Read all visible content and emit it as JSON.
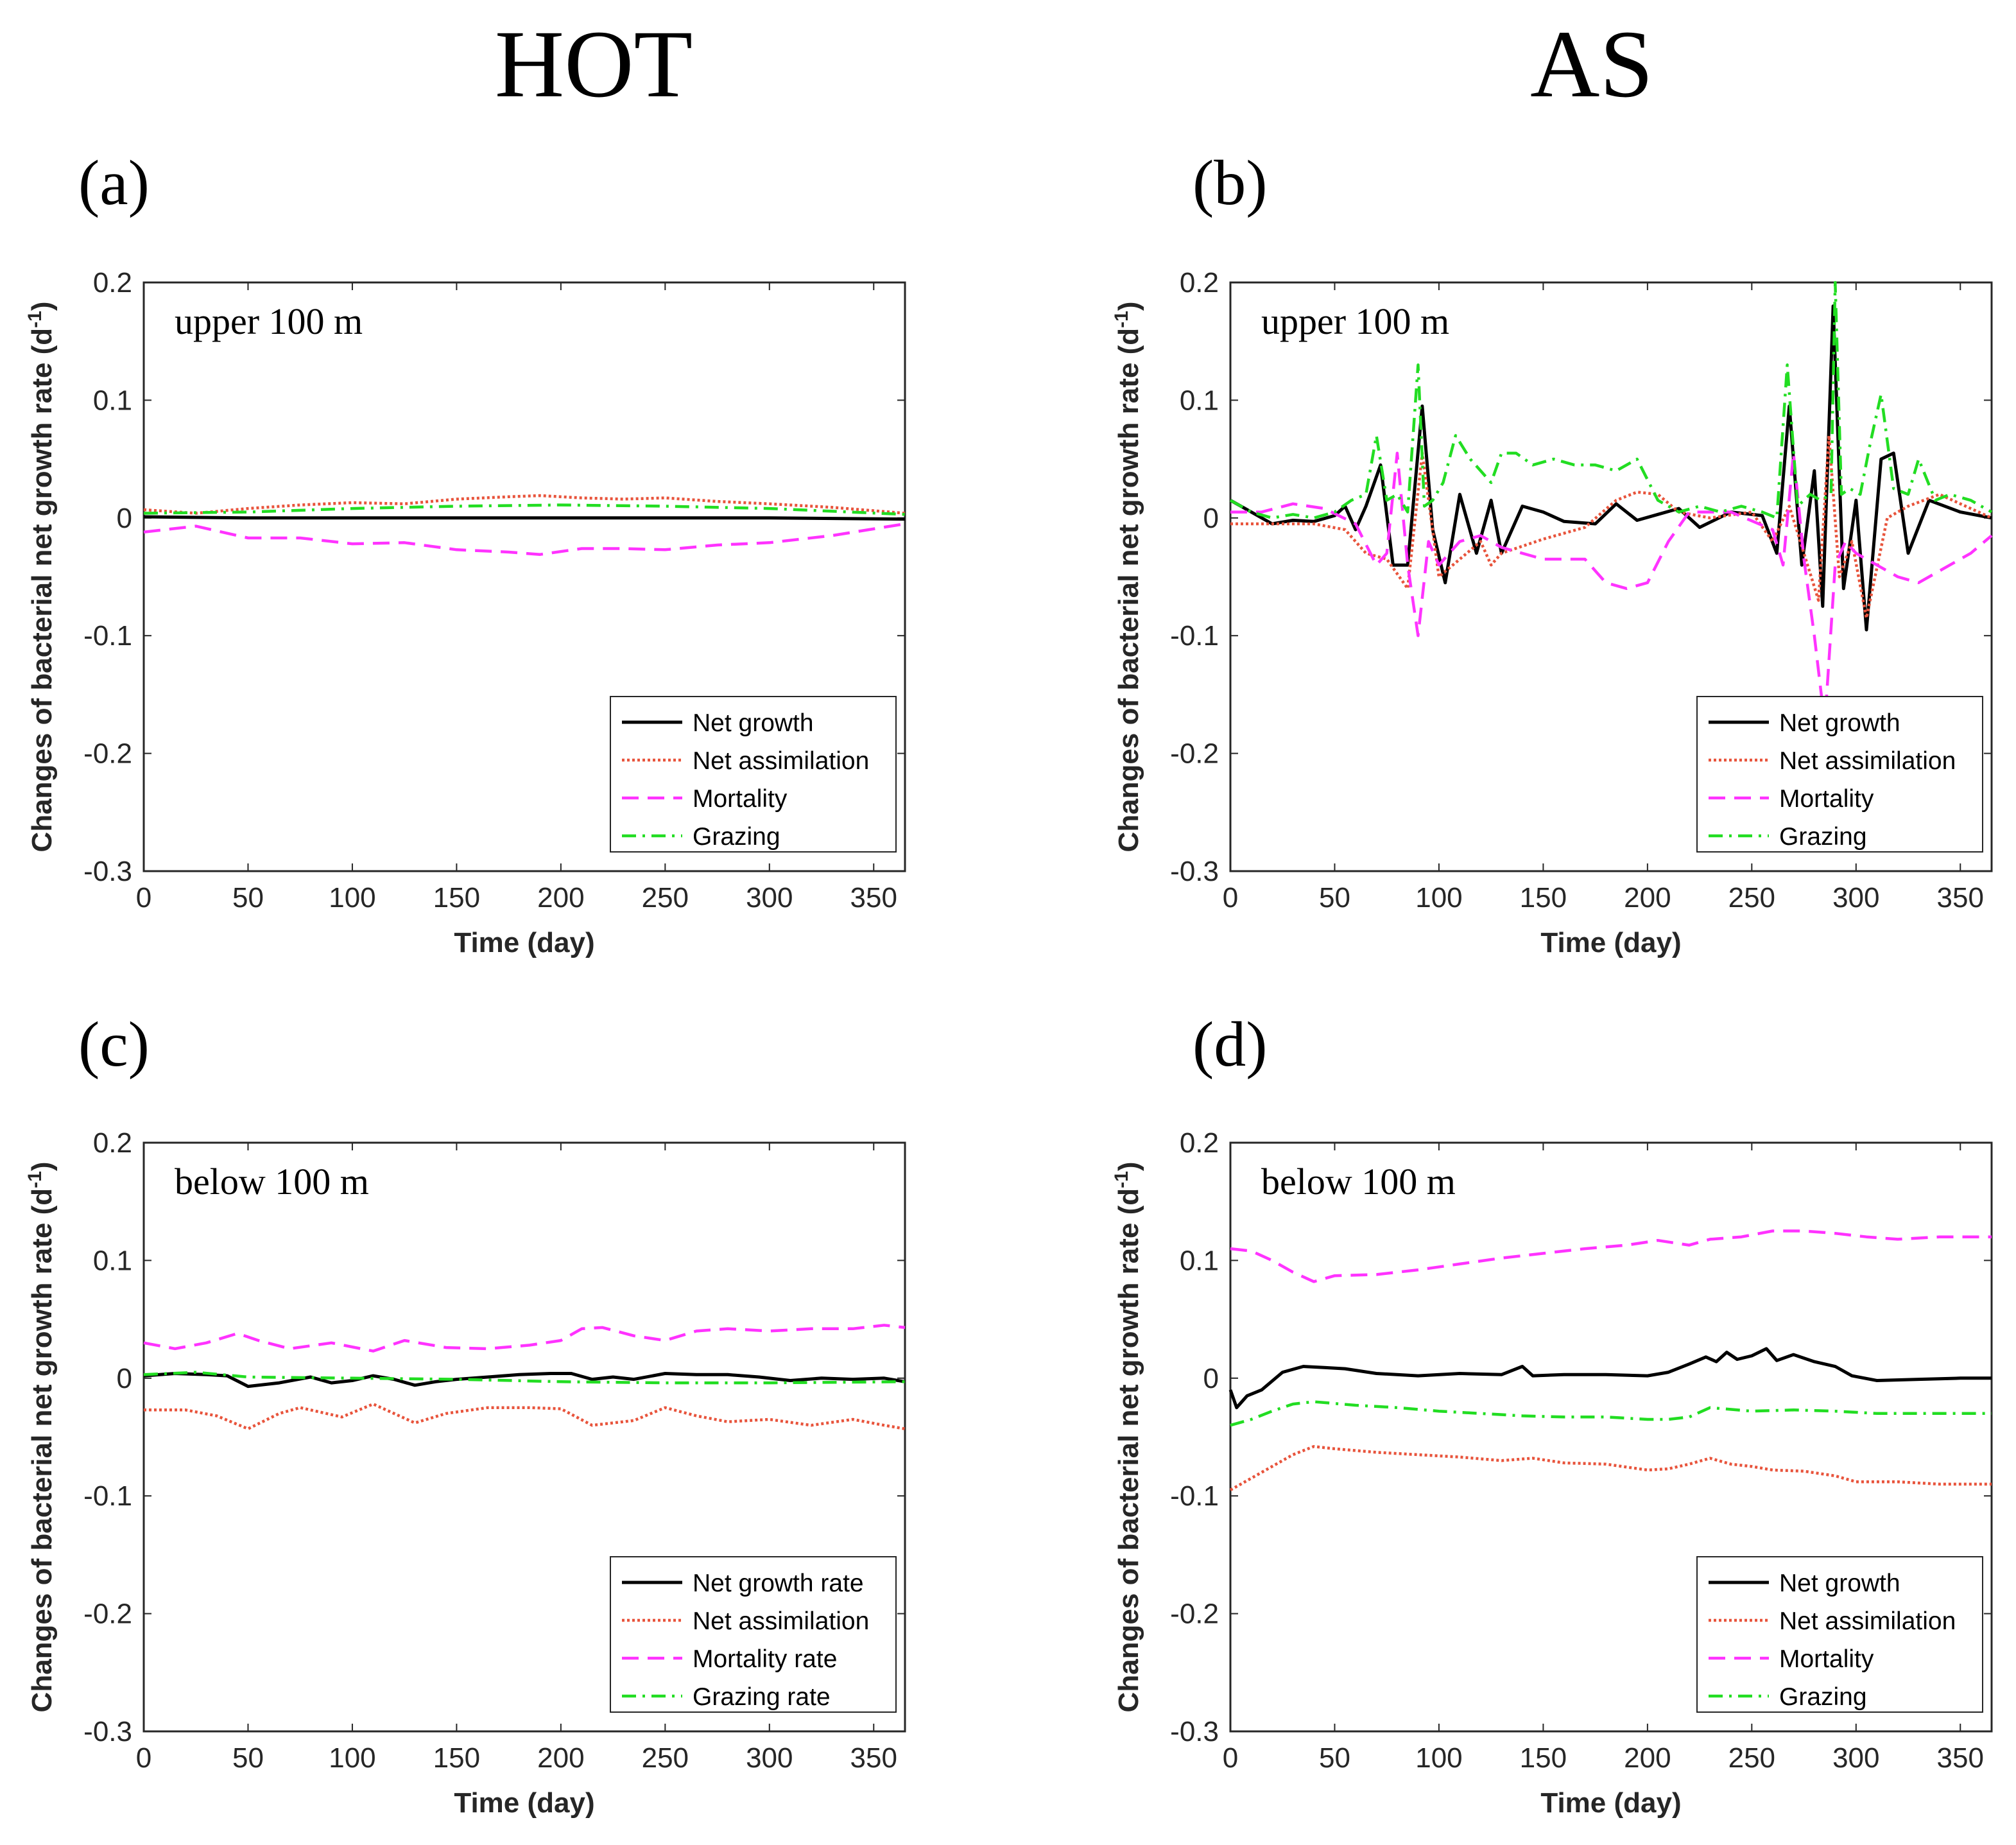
{
  "column_titles": [
    "HOT",
    "AS"
  ],
  "chart_data": [
    {
      "panel": "(a)",
      "type": "line",
      "region": "upper 100 m",
      "xlabel": "Time (day)",
      "ylabel": "Changes of bacterial net growth rate (d",
      "ylabel_sup": "-1",
      "ylabel_end": ")",
      "xlim": [
        0,
        365
      ],
      "ylim": [
        -0.3,
        0.2
      ],
      "xticks": [
        0,
        50,
        100,
        150,
        200,
        250,
        300,
        350
      ],
      "yticks": [
        -0.3,
        -0.2,
        -0.1,
        0,
        0.1,
        0.2
      ],
      "series": [
        {
          "name": "Net growth",
          "style": "solid",
          "color": "#000000",
          "x": [
            0,
            50,
            100,
            150,
            200,
            250,
            300,
            365
          ],
          "y": [
            0.001,
            0.0,
            0.0,
            0.0,
            0.0,
            0.0,
            0.0,
            -0.001
          ]
        },
        {
          "name": "Net assimilation",
          "style": "dotted",
          "color": "#e8543c",
          "x": [
            0,
            25,
            50,
            75,
            100,
            125,
            150,
            175,
            190,
            210,
            230,
            250,
            275,
            300,
            330,
            365
          ],
          "y": [
            0.007,
            0.004,
            0.008,
            0.011,
            0.013,
            0.012,
            0.016,
            0.018,
            0.019,
            0.017,
            0.016,
            0.017,
            0.014,
            0.012,
            0.009,
            0.004
          ]
        },
        {
          "name": "Mortality",
          "style": "dashed",
          "color": "#ff33ff",
          "x": [
            0,
            25,
            50,
            75,
            100,
            125,
            150,
            175,
            190,
            210,
            230,
            250,
            275,
            300,
            330,
            365
          ],
          "y": [
            -0.012,
            -0.007,
            -0.017,
            -0.017,
            -0.022,
            -0.021,
            -0.027,
            -0.029,
            -0.031,
            -0.026,
            -0.026,
            -0.027,
            -0.023,
            -0.021,
            -0.015,
            -0.005
          ]
        },
        {
          "name": "Grazing",
          "style": "dashdot",
          "color": "#22dd22",
          "x": [
            0,
            50,
            100,
            150,
            200,
            250,
            300,
            365
          ],
          "y": [
            0.004,
            0.005,
            0.008,
            0.01,
            0.011,
            0.01,
            0.008,
            0.003
          ]
        }
      ]
    },
    {
      "panel": "(b)",
      "type": "line",
      "region": "upper 100 m",
      "xlabel": "Time (day)",
      "ylabel": "Changes of bacterial net growth rate (d",
      "ylabel_sup": "-1",
      "ylabel_end": ")",
      "xlim": [
        0,
        365
      ],
      "ylim": [
        -0.3,
        0.2
      ],
      "xticks": [
        0,
        50,
        100,
        150,
        200,
        250,
        300,
        350
      ],
      "yticks": [
        -0.3,
        -0.2,
        -0.1,
        0,
        0.1,
        0.2
      ],
      "series": [
        {
          "name": "Net growth",
          "style": "solid",
          "color": "#000000",
          "x": [
            0,
            10,
            20,
            30,
            40,
            50,
            55,
            60,
            65,
            72,
            78,
            85,
            92,
            97,
            103,
            110,
            118,
            125,
            130,
            140,
            150,
            160,
            175,
            185,
            195,
            205,
            215,
            225,
            240,
            255,
            262,
            268,
            274,
            280,
            284,
            289,
            294,
            300,
            305,
            312,
            318,
            325,
            335,
            350,
            365
          ],
          "y": [
            0.015,
            0.005,
            -0.005,
            -0.002,
            -0.003,
            0.002,
            0.01,
            -0.01,
            0.01,
            0.045,
            -0.04,
            -0.04,
            0.095,
            -0.01,
            -0.055,
            0.02,
            -0.03,
            0.015,
            -0.03,
            0.01,
            0.005,
            -0.003,
            -0.005,
            0.012,
            -0.002,
            0.003,
            0.008,
            -0.008,
            0.005,
            0.002,
            -0.03,
            0.095,
            -0.04,
            0.04,
            -0.075,
            0.18,
            -0.06,
            0.015,
            -0.095,
            0.05,
            0.055,
            -0.03,
            0.015,
            0.005,
            0.0
          ]
        },
        {
          "name": "Net assimilation",
          "style": "dotted",
          "color": "#e8543c",
          "x": [
            0,
            20,
            40,
            55,
            65,
            75,
            85,
            92,
            100,
            110,
            120,
            125,
            130,
            150,
            170,
            185,
            195,
            205,
            215,
            230,
            250,
            260,
            268,
            275,
            282,
            287,
            292,
            298,
            305,
            315,
            325,
            340,
            365
          ],
          "y": [
            -0.005,
            -0.005,
            -0.005,
            -0.01,
            -0.03,
            -0.035,
            -0.06,
            0.055,
            -0.05,
            -0.035,
            -0.02,
            -0.04,
            -0.03,
            -0.018,
            -0.008,
            0.015,
            0.022,
            0.02,
            0.005,
            0.0,
            0.005,
            -0.02,
            0.01,
            -0.03,
            -0.07,
            0.07,
            -0.05,
            -0.02,
            -0.085,
            0.0,
            0.01,
            0.02,
            0.0
          ]
        },
        {
          "name": "Mortality",
          "style": "dashed",
          "color": "#ff33ff",
          "x": [
            0,
            15,
            30,
            45,
            60,
            70,
            75,
            80,
            85,
            90,
            95,
            100,
            110,
            120,
            130,
            150,
            170,
            180,
            190,
            200,
            210,
            220,
            240,
            260,
            265,
            270,
            275,
            280,
            285,
            290,
            295,
            300,
            310,
            320,
            330,
            340,
            355,
            365
          ],
          "y": [
            0.005,
            0.005,
            0.012,
            0.008,
            -0.005,
            -0.04,
            -0.03,
            0.055,
            -0.04,
            -0.1,
            -0.02,
            -0.04,
            -0.02,
            -0.015,
            -0.025,
            -0.035,
            -0.035,
            -0.055,
            -0.06,
            -0.055,
            -0.02,
            0.005,
            0.005,
            -0.01,
            -0.04,
            0.055,
            -0.035,
            -0.1,
            -0.175,
            -0.04,
            -0.02,
            -0.03,
            -0.04,
            -0.05,
            -0.055,
            -0.045,
            -0.03,
            -0.015
          ]
        },
        {
          "name": "Grazing",
          "style": "dashdot",
          "color": "#22dd22",
          "x": [
            0,
            10,
            20,
            30,
            40,
            50,
            58,
            65,
            70,
            75,
            80,
            85,
            90,
            93,
            97,
            102,
            108,
            115,
            125,
            130,
            137,
            145,
            155,
            165,
            175,
            185,
            195,
            205,
            215,
            225,
            235,
            245,
            255,
            262,
            267,
            272,
            278,
            283,
            288,
            290,
            293,
            297,
            302,
            307,
            312,
            318,
            325,
            330,
            338,
            345,
            355,
            365
          ],
          "y": [
            0.015,
            0.005,
            0.0,
            0.003,
            0.0,
            0.005,
            0.015,
            0.02,
            0.07,
            0.015,
            0.02,
            0.005,
            0.13,
            0.01,
            0.015,
            0.03,
            0.07,
            0.05,
            0.03,
            0.055,
            0.055,
            0.045,
            0.05,
            0.045,
            0.045,
            0.04,
            0.05,
            0.015,
            0.005,
            0.01,
            0.005,
            0.01,
            0.005,
            0.0,
            0.13,
            0.01,
            0.02,
            0.015,
            0.02,
            0.2,
            0.02,
            0.025,
            0.02,
            0.065,
            0.105,
            0.025,
            0.02,
            0.05,
            0.015,
            0.02,
            0.015,
            0.005
          ]
        }
      ],
      "legend": [
        "Net growth",
        "Net assimilation",
        "Mortality",
        "Grazing"
      ]
    },
    {
      "panel": "(c)",
      "type": "line",
      "region": "below 100 m",
      "xlabel": "Time (day)",
      "ylabel": "Changes of bacterial net growth rate (d",
      "ylabel_sup": "-1",
      "ylabel_end": ")",
      "xlim": [
        0,
        365
      ],
      "ylim": [
        -0.3,
        0.2
      ],
      "xticks": [
        0,
        50,
        100,
        150,
        200,
        250,
        300,
        350
      ],
      "yticks": [
        -0.3,
        -0.2,
        -0.1,
        0,
        0.1,
        0.2
      ],
      "series": [
        {
          "name": "Net growth rate",
          "style": "solid",
          "color": "#000000",
          "x": [
            0,
            15,
            30,
            40,
            50,
            65,
            80,
            90,
            100,
            110,
            120,
            130,
            140,
            150,
            165,
            180,
            195,
            205,
            215,
            225,
            235,
            250,
            265,
            280,
            295,
            310,
            325,
            340,
            355,
            365
          ],
          "y": [
            0.002,
            0.004,
            0.003,
            0.002,
            -0.007,
            -0.004,
            0.001,
            -0.004,
            -0.002,
            0.002,
            -0.001,
            -0.006,
            -0.003,
            -0.001,
            0.001,
            0.003,
            0.004,
            0.004,
            -0.001,
            0.001,
            -0.001,
            0.004,
            0.003,
            0.003,
            0.001,
            -0.002,
            0.0,
            -0.001,
            0.0,
            -0.003
          ]
        },
        {
          "name": "Net assimilation",
          "style": "dotted",
          "color": "#e8543c",
          "x": [
            0,
            20,
            35,
            50,
            65,
            75,
            95,
            110,
            130,
            145,
            165,
            185,
            200,
            215,
            235,
            250,
            265,
            280,
            300,
            320,
            340,
            355,
            365
          ],
          "y": [
            -0.027,
            -0.027,
            -0.032,
            -0.043,
            -0.03,
            -0.025,
            -0.033,
            -0.022,
            -0.038,
            -0.03,
            -0.025,
            -0.025,
            -0.026,
            -0.04,
            -0.036,
            -0.025,
            -0.032,
            -0.037,
            -0.035,
            -0.04,
            -0.035,
            -0.04,
            -0.043
          ]
        },
        {
          "name": "Mortality rate",
          "style": "dashed",
          "color": "#ff33ff",
          "x": [
            0,
            15,
            30,
            45,
            55,
            70,
            90,
            110,
            125,
            145,
            165,
            185,
            200,
            210,
            220,
            235,
            250,
            265,
            280,
            300,
            320,
            340,
            355,
            365
          ],
          "y": [
            0.03,
            0.025,
            0.03,
            0.038,
            0.032,
            0.025,
            0.03,
            0.023,
            0.032,
            0.026,
            0.025,
            0.028,
            0.032,
            0.042,
            0.043,
            0.036,
            0.032,
            0.04,
            0.042,
            0.04,
            0.042,
            0.042,
            0.045,
            0.043
          ]
        },
        {
          "name": "Grazing rate",
          "style": "dashdot",
          "color": "#22dd22",
          "x": [
            0,
            25,
            50,
            100,
            150,
            200,
            250,
            300,
            365
          ],
          "y": [
            0.003,
            0.005,
            0.001,
            0.0,
            -0.001,
            -0.003,
            -0.004,
            -0.004,
            -0.003
          ]
        }
      ]
    },
    {
      "panel": "(d)",
      "type": "line",
      "region": "below 100 m",
      "xlabel": "Time (day)",
      "ylabel": "Changes of bacterial net growth rate (d",
      "ylabel_sup": "-1",
      "ylabel_end": ")",
      "xlim": [
        0,
        365
      ],
      "ylim": [
        -0.3,
        0.2
      ],
      "xticks": [
        0,
        50,
        100,
        150,
        200,
        250,
        300,
        350
      ],
      "yticks": [
        -0.3,
        -0.2,
        -0.1,
        0,
        0.1,
        0.2
      ],
      "series": [
        {
          "name": "Net growth",
          "style": "solid",
          "color": "#000000",
          "x": [
            0,
            3,
            8,
            15,
            25,
            35,
            45,
            55,
            70,
            90,
            110,
            130,
            140,
            145,
            160,
            180,
            200,
            210,
            220,
            228,
            233,
            238,
            243,
            250,
            257,
            262,
            270,
            280,
            290,
            298,
            310,
            330,
            350,
            365
          ],
          "y": [
            -0.01,
            -0.025,
            -0.015,
            -0.01,
            0.005,
            0.01,
            0.009,
            0.008,
            0.004,
            0.002,
            0.004,
            0.003,
            0.01,
            0.002,
            0.003,
            0.003,
            0.002,
            0.005,
            0.012,
            0.018,
            0.014,
            0.022,
            0.016,
            0.019,
            0.025,
            0.015,
            0.02,
            0.014,
            0.01,
            0.002,
            -0.002,
            -0.001,
            0.0,
            0.0
          ]
        },
        {
          "name": "Net assimilation",
          "style": "dotted",
          "color": "#e8543c",
          "x": [
            0,
            10,
            20,
            30,
            40,
            50,
            70,
            90,
            110,
            130,
            145,
            160,
            180,
            200,
            210,
            220,
            230,
            240,
            250,
            260,
            275,
            290,
            300,
            320,
            340,
            365
          ],
          "y": [
            -0.095,
            -0.085,
            -0.075,
            -0.065,
            -0.058,
            -0.06,
            -0.063,
            -0.065,
            -0.067,
            -0.07,
            -0.068,
            -0.072,
            -0.073,
            -0.078,
            -0.077,
            -0.073,
            -0.068,
            -0.073,
            -0.075,
            -0.078,
            -0.079,
            -0.083,
            -0.088,
            -0.088,
            -0.09,
            -0.09
          ]
        },
        {
          "name": "Mortality",
          "style": "dashed",
          "color": "#ff33ff",
          "x": [
            0,
            10,
            20,
            30,
            40,
            50,
            70,
            90,
            110,
            130,
            150,
            170,
            190,
            205,
            220,
            230,
            245,
            260,
            275,
            290,
            305,
            320,
            340,
            355,
            365
          ],
          "y": [
            0.11,
            0.108,
            0.1,
            0.09,
            0.082,
            0.087,
            0.088,
            0.092,
            0.097,
            0.102,
            0.106,
            0.11,
            0.113,
            0.117,
            0.113,
            0.118,
            0.12,
            0.125,
            0.125,
            0.123,
            0.12,
            0.118,
            0.12,
            0.12,
            0.12
          ]
        },
        {
          "name": "Grazing",
          "style": "dashdot",
          "color": "#22dd22",
          "x": [
            0,
            10,
            20,
            30,
            40,
            60,
            80,
            100,
            120,
            140,
            160,
            180,
            200,
            210,
            220,
            230,
            250,
            270,
            290,
            310,
            330,
            350,
            365
          ],
          "y": [
            -0.04,
            -0.035,
            -0.028,
            -0.022,
            -0.02,
            -0.023,
            -0.025,
            -0.028,
            -0.03,
            -0.032,
            -0.033,
            -0.033,
            -0.035,
            -0.035,
            -0.033,
            -0.025,
            -0.028,
            -0.027,
            -0.028,
            -0.03,
            -0.03,
            -0.03,
            -0.03
          ]
        }
      ]
    }
  ]
}
